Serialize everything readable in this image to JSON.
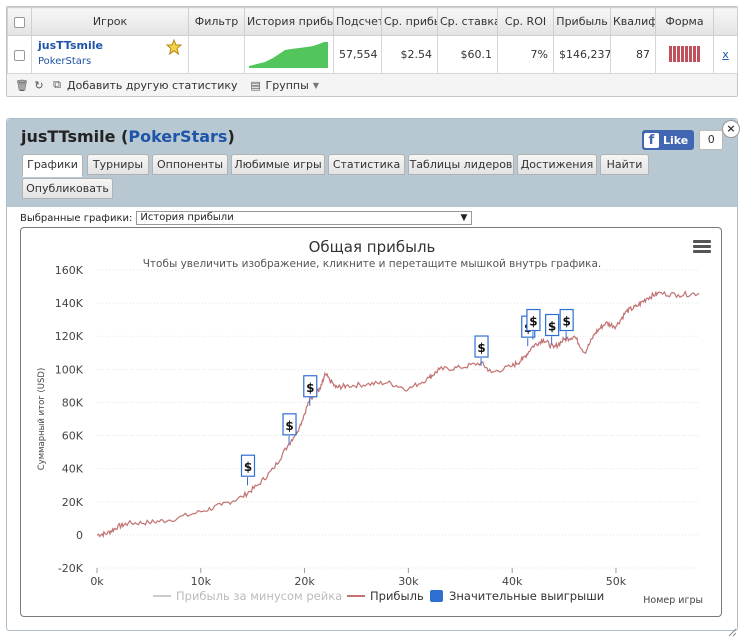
{
  "stats_table": {
    "headers": [
      "Игрок",
      "Фильтр",
      "История прибыі",
      "Подсчет",
      "Ср. прибы",
      "Ср. ставка",
      "Ср. ROI",
      "Прибыль",
      "Квалиф",
      "Форма"
    ],
    "row": {
      "player": "jusTTsmile",
      "site": "PokerStars",
      "filter": "",
      "count": "57,554",
      "avg_profit": "$2.54",
      "avg_stake": "$60.1",
      "avg_roi": "7%",
      "profit": "$146,237",
      "qualif": "87",
      "remove": "x",
      "form_bars": 8
    }
  },
  "toolbar": {
    "add_stat": "Добавить другую статистику",
    "groups": "Группы"
  },
  "panel": {
    "title_player": "jusTTsmile",
    "title_site": "PokerStars",
    "fb_like": "Like",
    "fb_count": "0",
    "close": "×"
  },
  "tabs": [
    "Графики",
    "Турниры",
    "Оппоненты",
    "Любимые игры",
    "Статистика",
    "Таблицы лидеров",
    "Достижения",
    "Найти",
    "Опубликовать"
  ],
  "select": {
    "label": "Выбранные графики:",
    "value": "История прибыли"
  },
  "chart_data": {
    "type": "line",
    "title": "Общая прибыль",
    "subtitle": "Чтобы увеличить изображение, кликните и перетащите мышкой внутрь графика.",
    "ylabel": "Суммарный итог (USD)",
    "xlabel": "Номер игры",
    "xlim": [
      0,
      58000
    ],
    "ylim": [
      -20000,
      160000
    ],
    "x_ticks": [
      "0k",
      "10k",
      "20k",
      "30k",
      "40k",
      "50k"
    ],
    "y_ticks": [
      "-20K",
      "0",
      "20K",
      "40K",
      "60K",
      "80K",
      "100K",
      "120K",
      "140K",
      "160K"
    ],
    "legend": [
      "Прибыль за минусом рейка",
      "Прибыль",
      "Значительные выигрыши"
    ],
    "series": [
      {
        "name": "Прибыль",
        "x": [
          0,
          1000,
          2000,
          3000,
          5000,
          7000,
          10000,
          12000,
          14000,
          15500,
          17000,
          18500,
          19500,
          20500,
          21000,
          21500,
          22000,
          23000,
          24000,
          26000,
          28000,
          30000,
          32000,
          33000,
          35000,
          37000,
          38000,
          40000,
          41000,
          42000,
          43000,
          44000,
          45000,
          46000,
          47000,
          48000,
          49000,
          50000,
          51000,
          52000,
          53000,
          54000,
          56000,
          58000
        ],
        "values": [
          0,
          1000,
          5000,
          7000,
          7500,
          9000,
          14000,
          18000,
          23000,
          30000,
          40000,
          55000,
          65000,
          82000,
          86000,
          88000,
          97000,
          89000,
          90000,
          91000,
          92000,
          88000,
          95000,
          100000,
          101000,
          104000,
          98000,
          102000,
          106000,
          114000,
          118000,
          113000,
          118000,
          120000,
          110000,
          122000,
          128000,
          126000,
          135000,
          138000,
          143000,
          146000,
          145000,
          146000
        ]
      }
    ],
    "big_wins": [
      {
        "x": 14500,
        "y": 30000
      },
      {
        "x": 18500,
        "y": 55000
      },
      {
        "x": 20500,
        "y": 78000
      },
      {
        "x": 37000,
        "y": 102000
      },
      {
        "x": 41500,
        "y": 114000
      },
      {
        "x": 42000,
        "y": 118000
      },
      {
        "x": 43800,
        "y": 115000
      },
      {
        "x": 45200,
        "y": 118000
      }
    ],
    "colors": {
      "profit": "#c27272",
      "rake": "#cccccc",
      "big_wins": "#2f6fd1"
    },
    "grid": true,
    "legend_position": "bottom"
  }
}
